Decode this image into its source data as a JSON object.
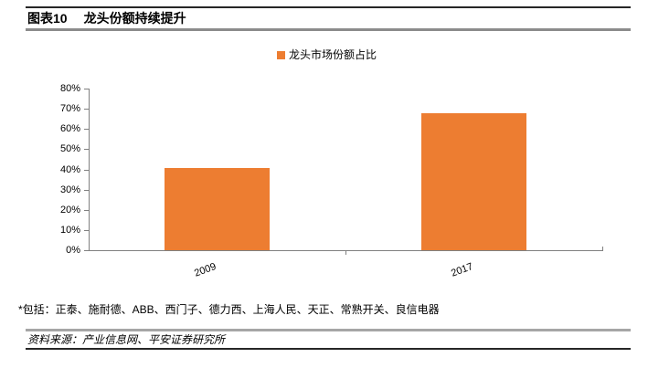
{
  "header": {
    "figure_label": "图表10",
    "figure_title": "龙头份额持续提升"
  },
  "legend": {
    "label": "龙头市场份额占比",
    "marker_color": "#ED7D31"
  },
  "chart_data": {
    "type": "bar",
    "title": "",
    "categories": [
      "2009",
      "2017"
    ],
    "values": [
      40.5,
      68
    ],
    "series_name": "龙头市场份额占比",
    "xlabel": "",
    "ylabel": "",
    "ylim": [
      0,
      80
    ],
    "ytick_step": 10,
    "ytick_labels": [
      "0%",
      "10%",
      "20%",
      "30%",
      "40%",
      "50%",
      "60%",
      "70%",
      "80%"
    ],
    "grid": false,
    "legend_position": "top-center",
    "bar_color": "#ED7D31",
    "axis_color": "#808080"
  },
  "footnote": "*包括：正泰、施耐德、ABB、西门子、德力西、上海人民、天正、常熟开关、良信电器",
  "source": "资料来源：产业信息网、平安证券研究所",
  "colors": {
    "bar": "#ED7D31",
    "axis": "#808080",
    "rule_dark": "#262626",
    "rule_gray": "#8c8c8c"
  }
}
